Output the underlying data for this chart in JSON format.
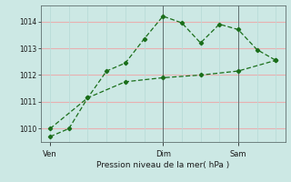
{
  "xlabel": "Pression niveau de la mer( hPa )",
  "bg_color": "#cce8e4",
  "grid_color_h": "#e8b0b0",
  "grid_color_v": "#b8dcd8",
  "line_color": "#1a6e1a",
  "line1_x": [
    0,
    1,
    2,
    3,
    4,
    5,
    6,
    7,
    8,
    9,
    10,
    11,
    12
  ],
  "line1_y": [
    1009.7,
    1010.0,
    1011.15,
    1012.15,
    1012.45,
    1013.35,
    1014.2,
    1013.95,
    1013.2,
    1013.9,
    1013.7,
    1012.95,
    1012.55
  ],
  "line2_x": [
    0,
    2,
    4,
    6,
    8,
    10,
    12
  ],
  "line2_y": [
    1010.0,
    1011.15,
    1011.75,
    1011.9,
    1012.0,
    1012.15,
    1012.55
  ],
  "ylim": [
    1009.5,
    1014.6
  ],
  "yticks": [
    1010,
    1011,
    1012,
    1013,
    1014
  ],
  "xtick_pos": [
    0,
    6,
    10
  ],
  "xtick_labels": [
    "Ven",
    "Dim",
    "Sam"
  ],
  "vline_pos": [
    6,
    10
  ],
  "num_vlines": 13
}
